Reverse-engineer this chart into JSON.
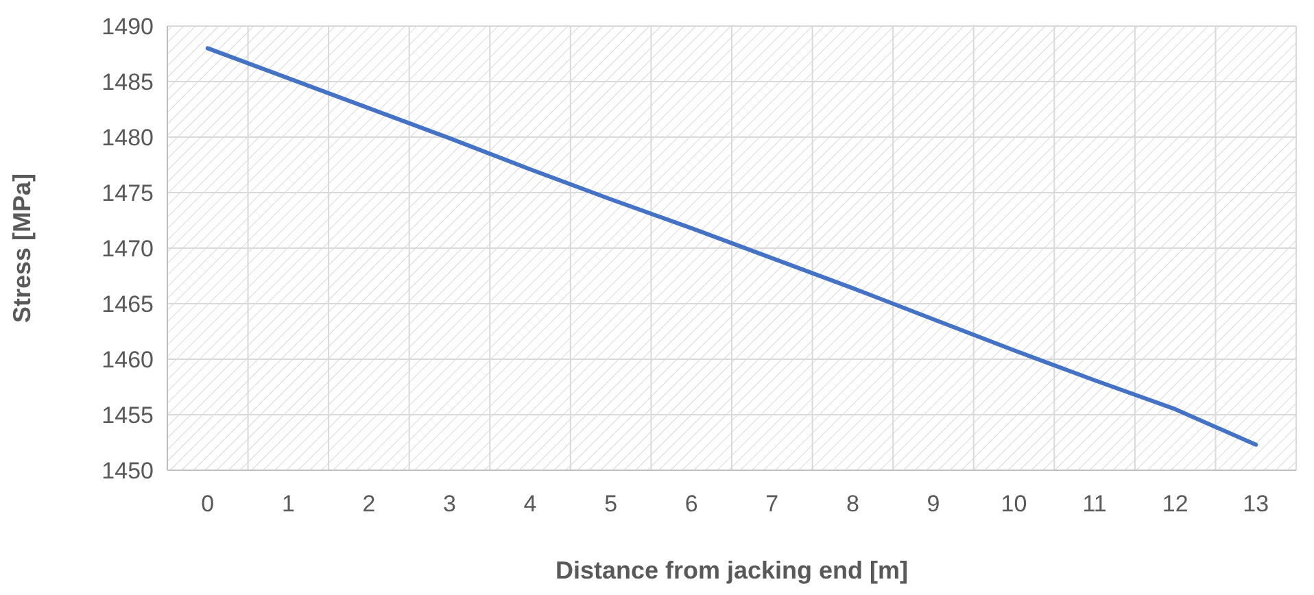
{
  "chart_data": {
    "type": "line",
    "xlabel": "Distance from jacking end [m]",
    "ylabel": "Stress [MPa]",
    "x": [
      0,
      1,
      2,
      3,
      4,
      5,
      6,
      7,
      8,
      9,
      10,
      11,
      12,
      13
    ],
    "series": [
      {
        "color": "#4472c4",
        "values": [
          1488,
          1485.3,
          1482.6,
          1479.9,
          1477.1,
          1474.4,
          1471.8,
          1469.1,
          1466.4,
          1463.6,
          1460.8,
          1458.1,
          1455.5,
          1452.3
        ]
      }
    ],
    "xlim": [
      -0.5,
      13.5
    ],
    "xticks": [
      0,
      1,
      2,
      3,
      4,
      5,
      6,
      7,
      8,
      9,
      10,
      11,
      12,
      13
    ],
    "ylim": [
      1450,
      1490
    ],
    "yticks": [
      1450,
      1455,
      1460,
      1465,
      1470,
      1475,
      1480,
      1485,
      1490
    ],
    "grid": true,
    "marker": "none",
    "line_style": "solid"
  }
}
